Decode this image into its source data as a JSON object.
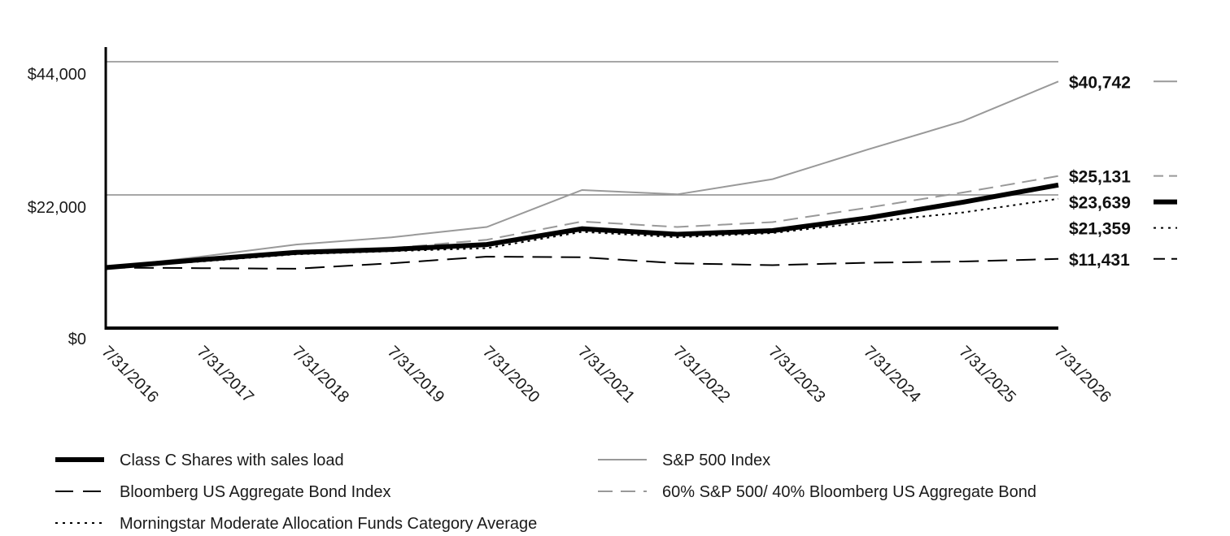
{
  "chart_data": {
    "type": "line",
    "x": [
      "7/31/2016",
      "7/31/2017",
      "7/31/2018",
      "7/31/2019",
      "7/31/2020",
      "7/31/2021",
      "7/31/2022",
      "7/31/2023",
      "7/31/2024",
      "7/31/2025",
      "7/31/2026"
    ],
    "ylim": [
      0,
      44000
    ],
    "yticks": [
      {
        "value": 0,
        "label": "$0"
      },
      {
        "value": 22000,
        "label": "$22,000"
      },
      {
        "value": 44000,
        "label": "$44,000"
      }
    ],
    "grid": true,
    "legend_position": "bottom",
    "series": [
      {
        "name": "Class C Shares with sales load",
        "color": "#000000",
        "style": "solid-thick",
        "end_label": "$23,639",
        "values": [
          10000,
          11300,
          12500,
          13000,
          13800,
          16400,
          15500,
          16100,
          18200,
          20800,
          23639
        ]
      },
      {
        "name": "S&P 500 Index",
        "color": "#999999",
        "style": "solid-thin",
        "end_label": "$40,742",
        "values": [
          10000,
          11800,
          13800,
          15000,
          16700,
          22800,
          22100,
          24600,
          29500,
          34200,
          40742
        ]
      },
      {
        "name": "Bloomberg US Aggregate Bond Index",
        "color": "#000000",
        "style": "long-dash",
        "end_label": "$11,431",
        "values": [
          10000,
          9900,
          9800,
          10700,
          11800,
          11700,
          10700,
          10400,
          10800,
          11000,
          11431
        ]
      },
      {
        "name": "60% S&P 500/ 40% Bloomberg US Aggregate Bond",
        "color": "#999999",
        "style": "dash",
        "end_label": "$25,131",
        "values": [
          10000,
          11100,
          12300,
          13200,
          14600,
          17600,
          16700,
          17500,
          19900,
          22400,
          25131
        ]
      },
      {
        "name": "Morningstar Moderate Allocation Funds Category Average",
        "color": "#000000",
        "style": "dot",
        "end_label": "$21,359",
        "values": [
          10000,
          11000,
          12200,
          12700,
          13200,
          15900,
          15000,
          15700,
          17500,
          19100,
          21359
        ]
      }
    ]
  }
}
